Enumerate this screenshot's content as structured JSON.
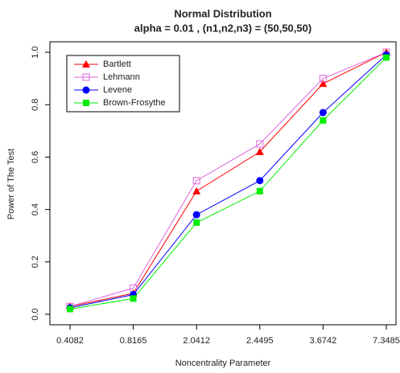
{
  "chart_data": {
    "type": "line",
    "title": "Normal Distribution",
    "subtitle": "alpha = 0.01 , (n1,n2,n3) = (50,50,50)",
    "x_label": "Noncentrality Parameter",
    "y_label": "Power of The Test",
    "categories": [
      "0.4082",
      "0.8165",
      "2.0412",
      "2.4495",
      "3.6742",
      "7.3485"
    ],
    "ylim": [
      -0.04,
      1.04
    ],
    "yticks": [
      {
        "value": 0,
        "label": "0.0"
      },
      0.2,
      0.4,
      0.6,
      0.8,
      {
        "value": 1,
        "label": "1.0"
      }
    ],
    "legend": "top-left",
    "series": [
      {
        "name": "Bartlett",
        "color": "#ff0000",
        "marker": "triangle",
        "values": [
          0.03,
          0.08,
          0.47,
          0.62,
          0.88,
          1.0
        ]
      },
      {
        "name": "Lehmann",
        "color": "#dd66dd",
        "marker": "open-square",
        "values": [
          0.03,
          0.1,
          0.51,
          0.65,
          0.9,
          1.0
        ]
      },
      {
        "name": "Levene",
        "color": "#0000ff",
        "marker": "circle",
        "values": [
          0.025,
          0.075,
          0.38,
          0.51,
          0.77,
          0.99
        ]
      },
      {
        "name": "Brown-Frosythe",
        "color": "#00ee00",
        "marker": "square",
        "values": [
          0.02,
          0.06,
          0.35,
          0.47,
          0.74,
          0.98
        ]
      }
    ]
  }
}
